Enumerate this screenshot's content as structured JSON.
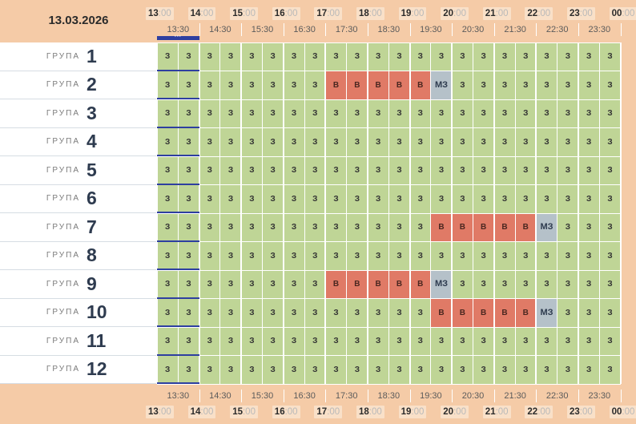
{
  "date": "13.03.2026",
  "hour_ticks": [
    {
      "h": "13",
      "m": ":00"
    },
    {
      "h": "14",
      "m": ":00"
    },
    {
      "h": "15",
      "m": ":00"
    },
    {
      "h": "16",
      "m": ":00"
    },
    {
      "h": "17",
      "m": ":00"
    },
    {
      "h": "18",
      "m": ":00"
    },
    {
      "h": "19",
      "m": ":00"
    },
    {
      "h": "20",
      "m": ":00"
    },
    {
      "h": "21",
      "m": ":00"
    },
    {
      "h": "22",
      "m": ":00"
    },
    {
      "h": "23",
      "m": ":00"
    },
    {
      "h": "00",
      "m": ":00"
    }
  ],
  "half_labels": [
    "13:30",
    "14:30",
    "15:30",
    "16:30",
    "17:30",
    "18:30",
    "19:30",
    "20:30",
    "21:30",
    "22:30",
    "23:30"
  ],
  "current_time_marker": "***",
  "group_label": "ГРУПА",
  "legend": {
    "free": "З",
    "busy": "В",
    "small": "МЗ"
  },
  "colors": {
    "free": "#bfd596",
    "busy": "#e07a66",
    "small": "#b5c1c9",
    "header": "#f5cba7",
    "now": "#2e3fa0"
  },
  "slot_count": 22,
  "rows": [
    {
      "number": "1",
      "slots": [
        "З",
        "З",
        "З",
        "З",
        "З",
        "З",
        "З",
        "З",
        "З",
        "З",
        "З",
        "З",
        "З",
        "З",
        "З",
        "З",
        "З",
        "З",
        "З",
        "З",
        "З",
        "З"
      ]
    },
    {
      "number": "2",
      "slots": [
        "З",
        "З",
        "З",
        "З",
        "З",
        "З",
        "З",
        "З",
        "В",
        "В",
        "В",
        "В",
        "В",
        "МЗ",
        "З",
        "З",
        "З",
        "З",
        "З",
        "З",
        "З",
        "З"
      ]
    },
    {
      "number": "3",
      "slots": [
        "З",
        "З",
        "З",
        "З",
        "З",
        "З",
        "З",
        "З",
        "З",
        "З",
        "З",
        "З",
        "З",
        "З",
        "З",
        "З",
        "З",
        "З",
        "З",
        "З",
        "З",
        "З"
      ]
    },
    {
      "number": "4",
      "slots": [
        "З",
        "З",
        "З",
        "З",
        "З",
        "З",
        "З",
        "З",
        "З",
        "З",
        "З",
        "З",
        "З",
        "З",
        "З",
        "З",
        "З",
        "З",
        "З",
        "З",
        "З",
        "З"
      ]
    },
    {
      "number": "5",
      "slots": [
        "З",
        "З",
        "З",
        "З",
        "З",
        "З",
        "З",
        "З",
        "З",
        "З",
        "З",
        "З",
        "З",
        "З",
        "З",
        "З",
        "З",
        "З",
        "З",
        "З",
        "З",
        "З"
      ]
    },
    {
      "number": "6",
      "slots": [
        "З",
        "З",
        "З",
        "З",
        "З",
        "З",
        "З",
        "З",
        "З",
        "З",
        "З",
        "З",
        "З",
        "З",
        "З",
        "З",
        "З",
        "З",
        "З",
        "З",
        "З",
        "З"
      ]
    },
    {
      "number": "7",
      "slots": [
        "З",
        "З",
        "З",
        "З",
        "З",
        "З",
        "З",
        "З",
        "З",
        "З",
        "З",
        "З",
        "З",
        "В",
        "В",
        "В",
        "В",
        "В",
        "МЗ",
        "З",
        "З",
        "З"
      ]
    },
    {
      "number": "8",
      "slots": [
        "З",
        "З",
        "З",
        "З",
        "З",
        "З",
        "З",
        "З",
        "З",
        "З",
        "З",
        "З",
        "З",
        "З",
        "З",
        "З",
        "З",
        "З",
        "З",
        "З",
        "З",
        "З"
      ]
    },
    {
      "number": "9",
      "slots": [
        "З",
        "З",
        "З",
        "З",
        "З",
        "З",
        "З",
        "З",
        "В",
        "В",
        "В",
        "В",
        "В",
        "МЗ",
        "З",
        "З",
        "З",
        "З",
        "З",
        "З",
        "З",
        "З"
      ]
    },
    {
      "number": "10",
      "slots": [
        "З",
        "З",
        "З",
        "З",
        "З",
        "З",
        "З",
        "З",
        "З",
        "З",
        "З",
        "З",
        "З",
        "В",
        "В",
        "В",
        "В",
        "В",
        "МЗ",
        "З",
        "З",
        "З"
      ]
    },
    {
      "number": "11",
      "slots": [
        "З",
        "З",
        "З",
        "З",
        "З",
        "З",
        "З",
        "З",
        "З",
        "З",
        "З",
        "З",
        "З",
        "З",
        "З",
        "З",
        "З",
        "З",
        "З",
        "З",
        "З",
        "З"
      ]
    },
    {
      "number": "12",
      "slots": [
        "З",
        "З",
        "З",
        "З",
        "З",
        "З",
        "З",
        "З",
        "З",
        "З",
        "З",
        "З",
        "З",
        "З",
        "З",
        "З",
        "З",
        "З",
        "З",
        "З",
        "З",
        "З"
      ]
    }
  ]
}
